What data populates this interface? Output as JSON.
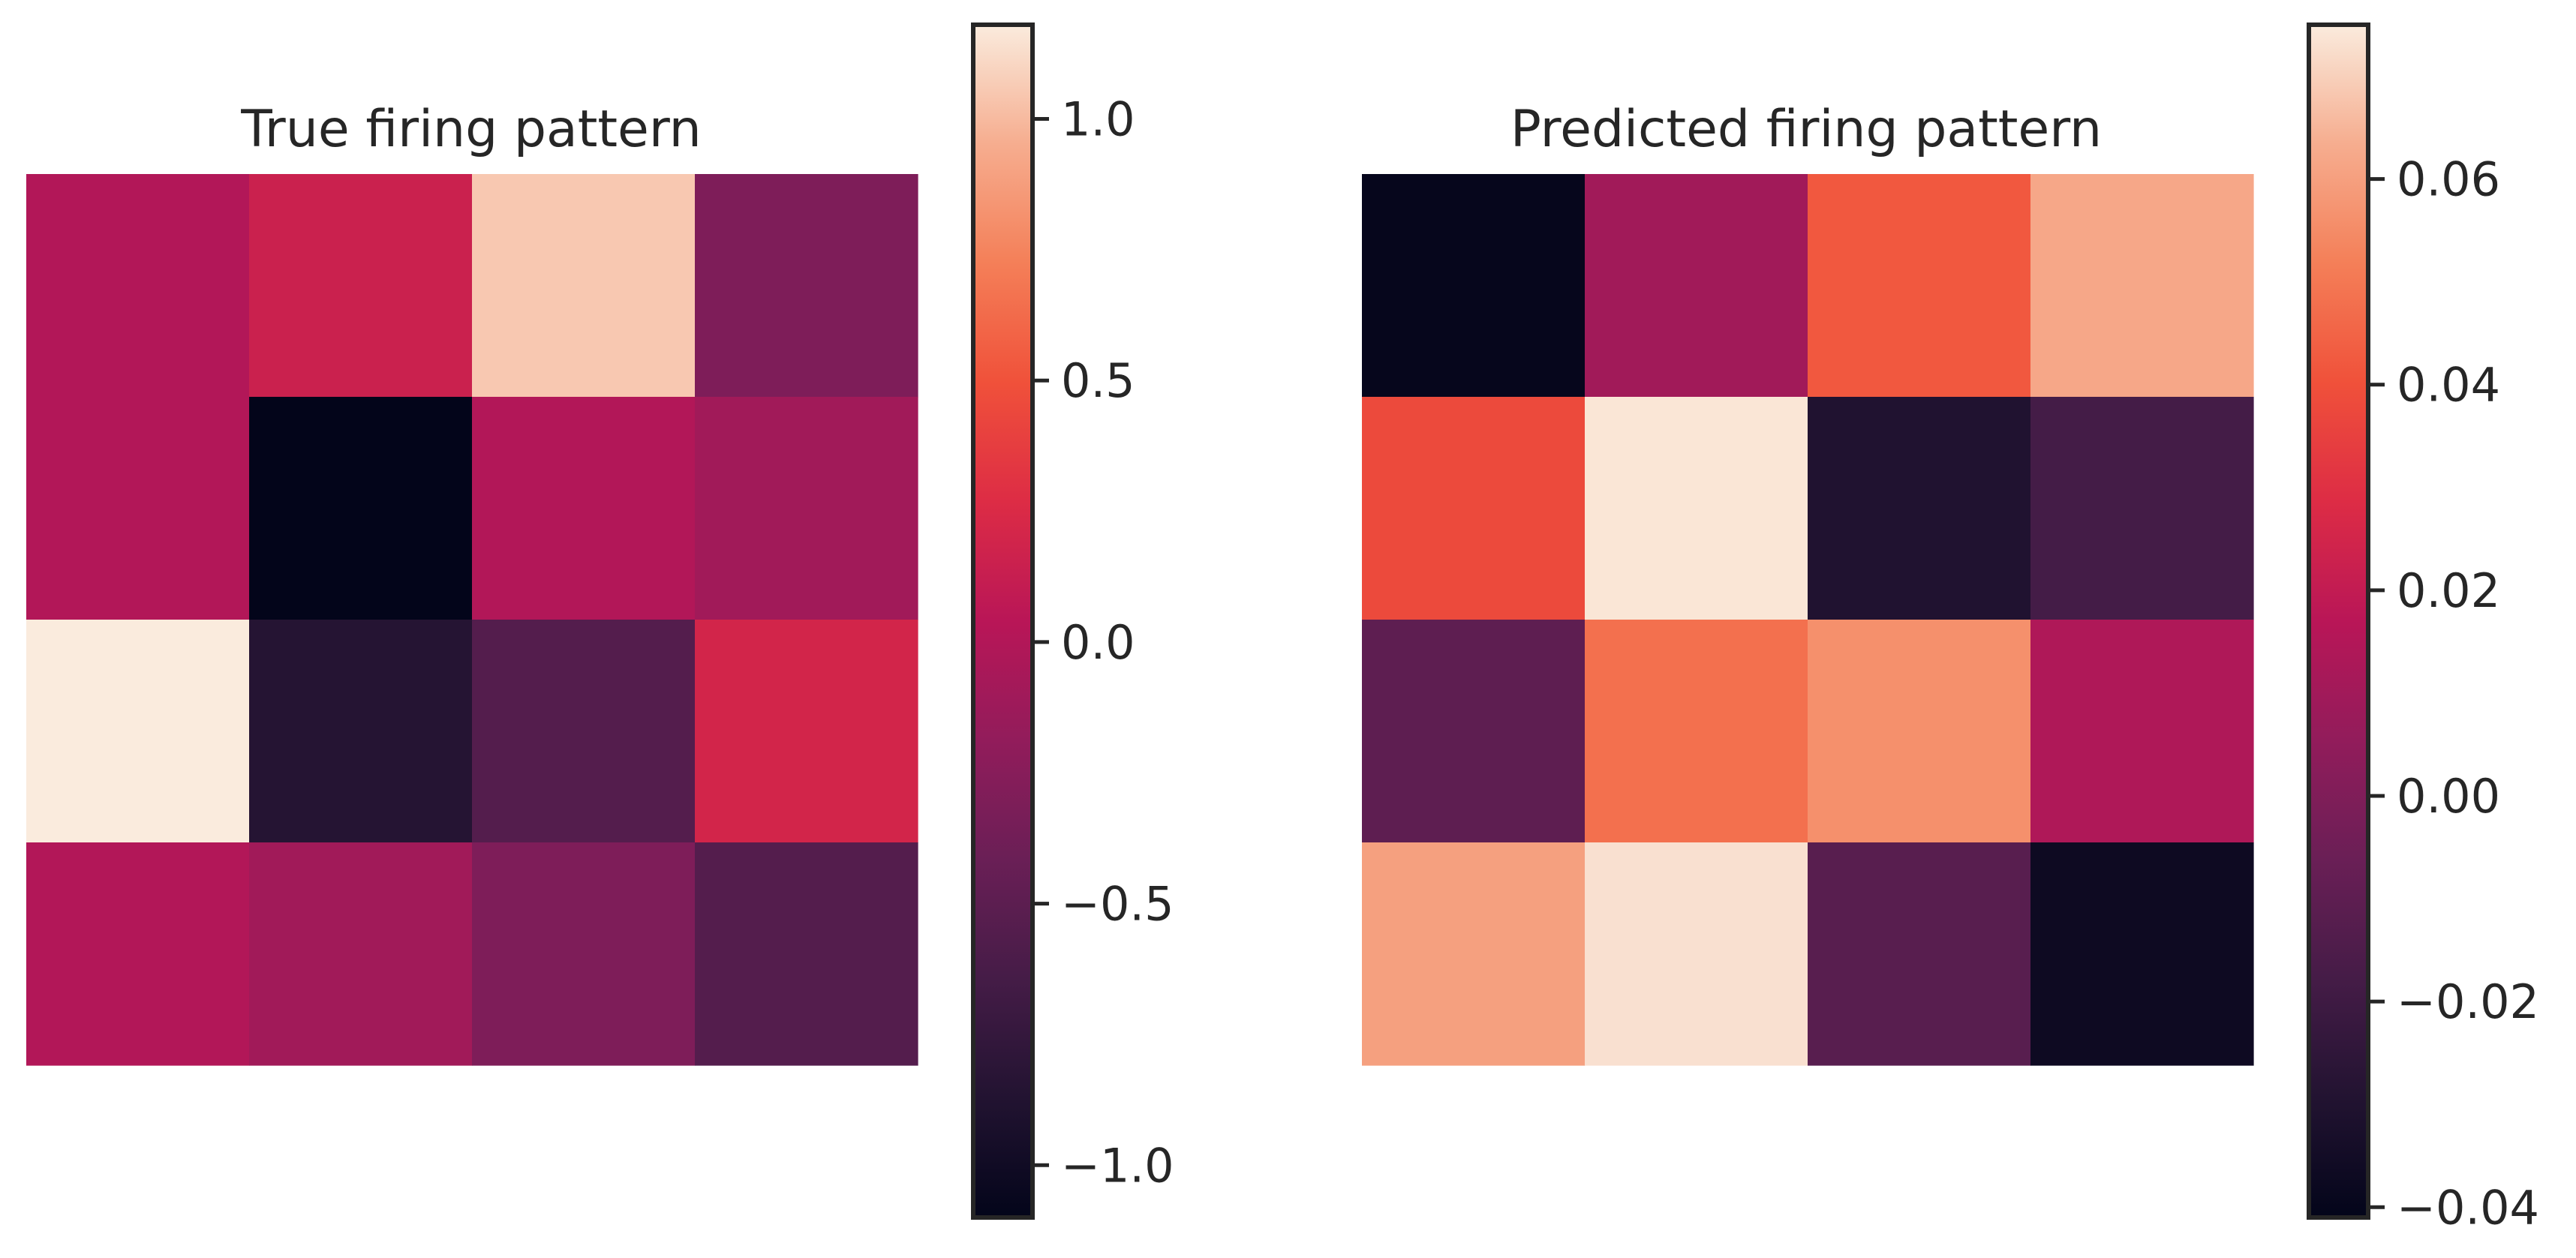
{
  "chart_data": [
    {
      "type": "heatmap",
      "title": "True firing pattern",
      "rows": 4,
      "cols": 4,
      "values": [
        [
          0.0,
          0.15,
          1.05,
          -0.3
        ],
        [
          0.0,
          -1.1,
          0.0,
          -0.1
        ],
        [
          1.18,
          -0.85,
          -0.55,
          0.2
        ],
        [
          0.0,
          -0.1,
          -0.3,
          -0.55
        ]
      ],
      "vmin": -1.1,
      "vmax": 1.18,
      "colorbar_ticks": [
        1.0,
        0.5,
        0.0,
        -0.5,
        -1.0
      ],
      "colorbar_tick_labels": [
        "1.0",
        "0.5",
        "0.0",
        "−0.5",
        "−1.0"
      ],
      "colormap": "rocket",
      "axes_visible": false
    },
    {
      "type": "heatmap",
      "title": "Predicted firing pattern",
      "rows": 4,
      "cols": 4,
      "values": [
        [
          -0.04,
          0.01,
          0.042,
          0.062
        ],
        [
          0.038,
          0.074,
          -0.03,
          -0.018
        ],
        [
          -0.01,
          0.048,
          0.056,
          0.014
        ],
        [
          0.06,
          0.073,
          -0.012,
          -0.037
        ]
      ],
      "vmin": -0.041,
      "vmax": 0.075,
      "colorbar_ticks": [
        0.06,
        0.04,
        0.02,
        0.0,
        -0.02,
        -0.04
      ],
      "colorbar_tick_labels": [
        "0.06",
        "0.04",
        "0.02",
        "0.00",
        "−0.02",
        "−0.04"
      ],
      "colormap": "rocket",
      "axes_visible": false
    }
  ]
}
